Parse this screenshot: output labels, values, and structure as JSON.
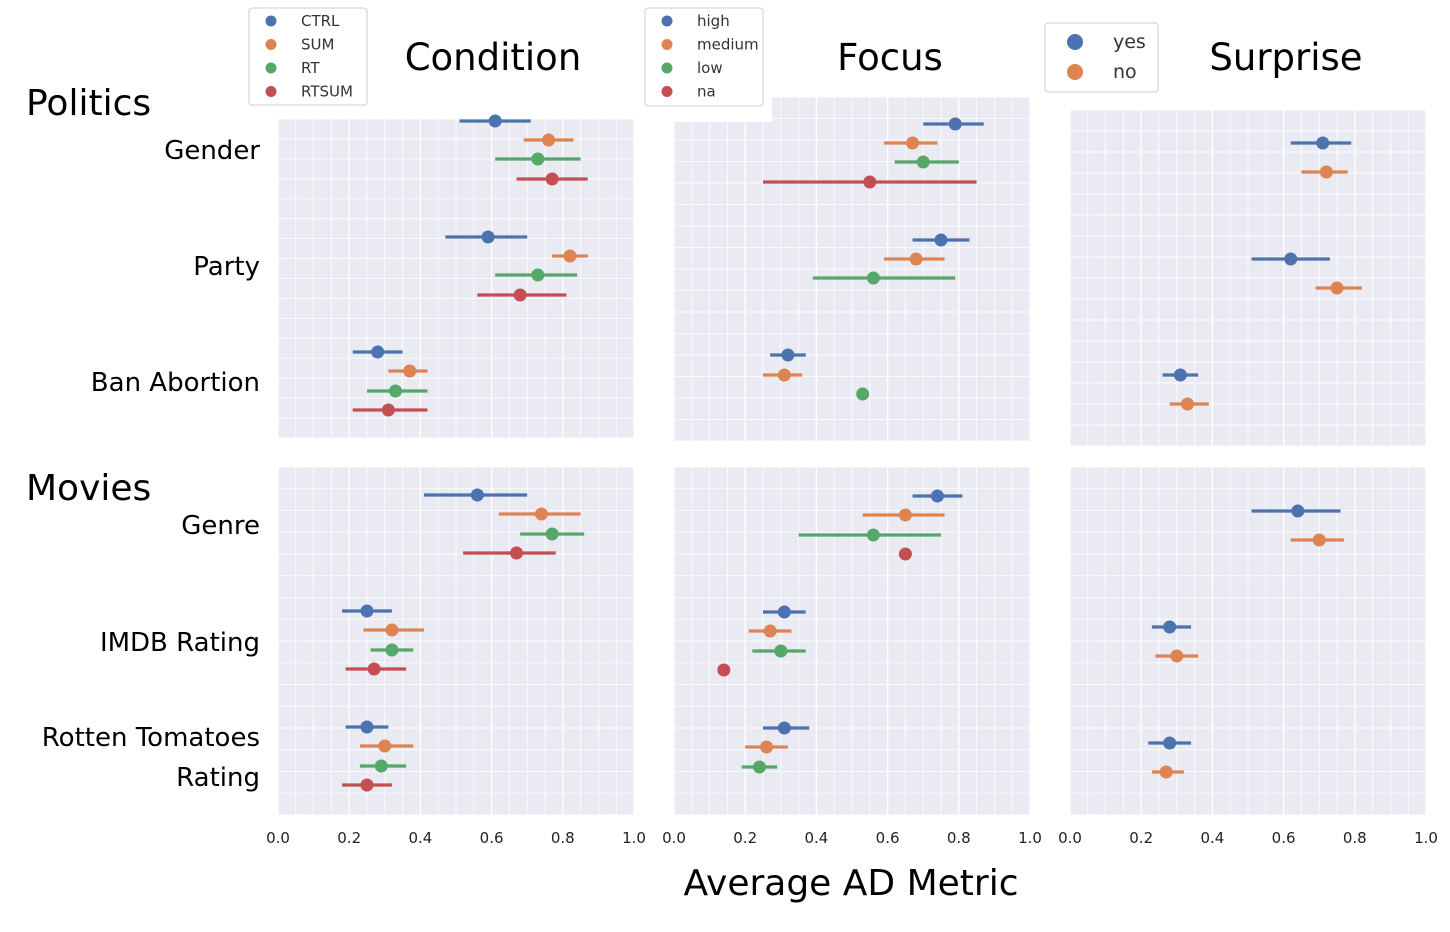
{
  "colors": {
    "blue": "#4c72b0",
    "orange": "#dd8452",
    "green": "#55a868",
    "red": "#c44e52",
    "panel_bg": "#eaeaf2",
    "grid": "#ffffff"
  },
  "x_axis_label": "Average AD Metric",
  "column_titles": [
    "Condition",
    "Focus",
    "Surprise"
  ],
  "group_titles": [
    "Politics",
    "Movies"
  ],
  "row_labels": {
    "politics": [
      "Gender",
      "Party",
      "Ban Abortion"
    ],
    "movies": [
      "Genre",
      "IMDB Rating",
      "Rotten Tomatoes",
      "Rating"
    ]
  },
  "legends": [
    {
      "entries": [
        "CTRL",
        "SUM",
        "RT",
        "RTSUM"
      ]
    },
    {
      "entries": [
        "high",
        "medium",
        "low",
        "na"
      ]
    },
    {
      "entries": [
        "yes",
        "no"
      ]
    }
  ],
  "chart_data": {
    "type": "scatter",
    "subtype": "point-estimate-with-interval",
    "xlabel": "Average AD Metric",
    "xlim": [
      0.0,
      1.0
    ],
    "xticks": [
      "0.0",
      "0.2",
      "0.4",
      "0.6",
      "0.8",
      "1.0"
    ],
    "grid": true,
    "panels": [
      {
        "column": "Condition",
        "group": "Politics",
        "legend": "top-left",
        "series_names": [
          "CTRL",
          "SUM",
          "RT",
          "RTSUM"
        ],
        "categories": [
          "Gender",
          "Party",
          "Ban Abortion"
        ],
        "points": {
          "Gender": [
            {
              "x": 0.61,
              "lo": 0.51,
              "hi": 0.71
            },
            {
              "x": 0.76,
              "lo": 0.69,
              "hi": 0.83
            },
            {
              "x": 0.73,
              "lo": 0.61,
              "hi": 0.85
            },
            {
              "x": 0.77,
              "lo": 0.67,
              "hi": 0.87
            }
          ],
          "Party": [
            {
              "x": 0.59,
              "lo": 0.47,
              "hi": 0.7
            },
            {
              "x": 0.82,
              "lo": 0.77,
              "hi": 0.87
            },
            {
              "x": 0.73,
              "lo": 0.61,
              "hi": 0.84
            },
            {
              "x": 0.68,
              "lo": 0.56,
              "hi": 0.81
            }
          ],
          "Ban Abortion": [
            {
              "x": 0.28,
              "lo": 0.21,
              "hi": 0.35
            },
            {
              "x": 0.37,
              "lo": 0.31,
              "hi": 0.42
            },
            {
              "x": 0.33,
              "lo": 0.25,
              "hi": 0.42
            },
            {
              "x": 0.31,
              "lo": 0.21,
              "hi": 0.42
            }
          ]
        }
      },
      {
        "column": "Focus",
        "group": "Politics",
        "legend": "top-left",
        "series_names": [
          "high",
          "medium",
          "low",
          "na"
        ],
        "categories": [
          "Gender",
          "Party",
          "Ban Abortion"
        ],
        "points": {
          "Gender": [
            {
              "x": 0.79,
              "lo": 0.7,
              "hi": 0.87
            },
            {
              "x": 0.67,
              "lo": 0.59,
              "hi": 0.74
            },
            {
              "x": 0.7,
              "lo": 0.62,
              "hi": 0.8
            },
            {
              "x": 0.55,
              "lo": 0.25,
              "hi": 0.85
            }
          ],
          "Party": [
            {
              "x": 0.75,
              "lo": 0.67,
              "hi": 0.83
            },
            {
              "x": 0.68,
              "lo": 0.59,
              "hi": 0.76
            },
            {
              "x": 0.56,
              "lo": 0.39,
              "hi": 0.79
            },
            null
          ],
          "Ban Abortion": [
            {
              "x": 0.32,
              "lo": 0.27,
              "hi": 0.37
            },
            {
              "x": 0.31,
              "lo": 0.25,
              "hi": 0.36
            },
            {
              "x": 0.53,
              "lo": 0.53,
              "hi": 0.53
            },
            null
          ]
        }
      },
      {
        "column": "Surprise",
        "group": "Politics",
        "legend": "top-left",
        "series_names": [
          "yes",
          "no"
        ],
        "categories": [
          "Gender",
          "Party",
          "Ban Abortion"
        ],
        "points": {
          "Gender": [
            {
              "x": 0.71,
              "lo": 0.62,
              "hi": 0.79
            },
            {
              "x": 0.72,
              "lo": 0.65,
              "hi": 0.78
            }
          ],
          "Party": [
            {
              "x": 0.62,
              "lo": 0.51,
              "hi": 0.73
            },
            {
              "x": 0.75,
              "lo": 0.69,
              "hi": 0.82
            }
          ],
          "Ban Abortion": [
            {
              "x": 0.31,
              "lo": 0.26,
              "hi": 0.36
            },
            {
              "x": 0.33,
              "lo": 0.28,
              "hi": 0.39
            }
          ]
        }
      },
      {
        "column": "Condition",
        "group": "Movies",
        "series_names": [
          "CTRL",
          "SUM",
          "RT",
          "RTSUM"
        ],
        "categories": [
          "Genre",
          "IMDB Rating",
          "Rotten Tomatoes Rating"
        ],
        "points": {
          "Genre": [
            {
              "x": 0.56,
              "lo": 0.41,
              "hi": 0.7
            },
            {
              "x": 0.74,
              "lo": 0.62,
              "hi": 0.85
            },
            {
              "x": 0.77,
              "lo": 0.68,
              "hi": 0.86
            },
            {
              "x": 0.67,
              "lo": 0.52,
              "hi": 0.78
            }
          ],
          "IMDB Rating": [
            {
              "x": 0.25,
              "lo": 0.18,
              "hi": 0.32
            },
            {
              "x": 0.32,
              "lo": 0.24,
              "hi": 0.41
            },
            {
              "x": 0.32,
              "lo": 0.26,
              "hi": 0.38
            },
            {
              "x": 0.27,
              "lo": 0.19,
              "hi": 0.36
            }
          ],
          "Rotten Tomatoes Rating": [
            {
              "x": 0.25,
              "lo": 0.19,
              "hi": 0.31
            },
            {
              "x": 0.3,
              "lo": 0.23,
              "hi": 0.38
            },
            {
              "x": 0.29,
              "lo": 0.23,
              "hi": 0.36
            },
            {
              "x": 0.25,
              "lo": 0.18,
              "hi": 0.32
            }
          ]
        }
      },
      {
        "column": "Focus",
        "group": "Movies",
        "series_names": [
          "high",
          "medium",
          "low",
          "na"
        ],
        "categories": [
          "Genre",
          "IMDB Rating",
          "Rotten Tomatoes Rating"
        ],
        "points": {
          "Genre": [
            {
              "x": 0.74,
              "lo": 0.67,
              "hi": 0.81
            },
            {
              "x": 0.65,
              "lo": 0.53,
              "hi": 0.76
            },
            {
              "x": 0.56,
              "lo": 0.35,
              "hi": 0.75
            },
            {
              "x": 0.65,
              "lo": 0.65,
              "hi": 0.65
            }
          ],
          "IMDB Rating": [
            {
              "x": 0.31,
              "lo": 0.25,
              "hi": 0.37
            },
            {
              "x": 0.27,
              "lo": 0.21,
              "hi": 0.33
            },
            {
              "x": 0.3,
              "lo": 0.22,
              "hi": 0.37
            },
            {
              "x": 0.14,
              "lo": 0.14,
              "hi": 0.14
            }
          ],
          "Rotten Tomatoes Rating": [
            {
              "x": 0.31,
              "lo": 0.25,
              "hi": 0.38
            },
            {
              "x": 0.26,
              "lo": 0.2,
              "hi": 0.32
            },
            {
              "x": 0.24,
              "lo": 0.19,
              "hi": 0.29
            },
            null
          ]
        }
      },
      {
        "column": "Surprise",
        "group": "Movies",
        "series_names": [
          "yes",
          "no"
        ],
        "categories": [
          "Genre",
          "IMDB Rating",
          "Rotten Tomatoes Rating"
        ],
        "points": {
          "Genre": [
            {
              "x": 0.64,
              "lo": 0.51,
              "hi": 0.76
            },
            {
              "x": 0.7,
              "lo": 0.62,
              "hi": 0.77
            }
          ],
          "IMDB Rating": [
            {
              "x": 0.28,
              "lo": 0.23,
              "hi": 0.34
            },
            {
              "x": 0.3,
              "lo": 0.24,
              "hi": 0.36
            }
          ],
          "Rotten Tomatoes Rating": [
            {
              "x": 0.28,
              "lo": 0.22,
              "hi": 0.34
            },
            {
              "x": 0.27,
              "lo": 0.23,
              "hi": 0.32
            }
          ]
        }
      }
    ]
  }
}
